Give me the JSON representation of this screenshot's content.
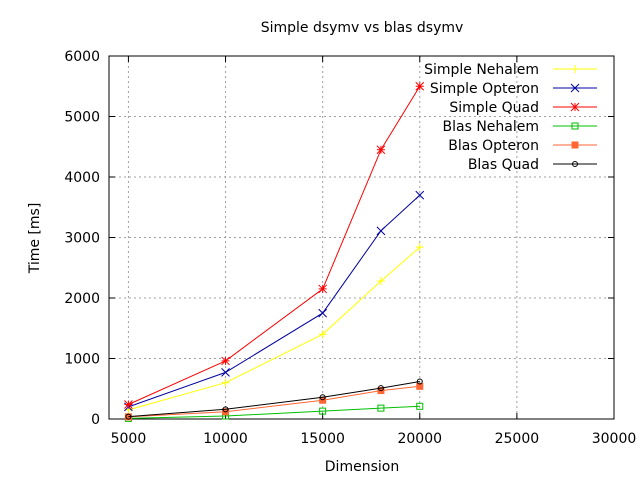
{
  "chart_data": {
    "type": "line",
    "title": "Simple dsymv vs blas dsymv",
    "xlabel": "Dimension",
    "ylabel": "Time [ms]",
    "xlim": [
      4000,
      30000
    ],
    "ylim": [
      0,
      6000
    ],
    "xticks": [
      5000,
      10000,
      15000,
      20000,
      25000,
      30000
    ],
    "yticks": [
      0,
      1000,
      2000,
      3000,
      4000,
      5000,
      6000
    ],
    "grid": true,
    "legend_position": "top-right",
    "x": [
      5000,
      10000,
      15000,
      18000,
      20000
    ],
    "series": [
      {
        "name": "Simple Nehalem",
        "color": "#ffff00",
        "marker": "plus",
        "values": [
          150,
          600,
          1400,
          2280,
          2840
        ]
      },
      {
        "name": "Simple Opteron",
        "color": "#0000a0",
        "marker": "cross",
        "values": [
          200,
          770,
          1750,
          3110,
          3700
        ]
      },
      {
        "name": "Simple Quad",
        "color": "#ff0000",
        "marker": "star",
        "values": [
          240,
          960,
          2150,
          4450,
          5500
        ]
      },
      {
        "name": "Blas Nehalem",
        "color": "#00c000",
        "marker": "square",
        "values": [
          10,
          50,
          130,
          180,
          210
        ]
      },
      {
        "name": "Blas Opteron",
        "color": "#ff6633",
        "marker": "filled-square",
        "values": [
          35,
          120,
          310,
          470,
          540
        ]
      },
      {
        "name": "Blas Quad",
        "color": "#000000",
        "marker": "circle",
        "values": [
          40,
          160,
          360,
          510,
          620
        ]
      }
    ]
  }
}
